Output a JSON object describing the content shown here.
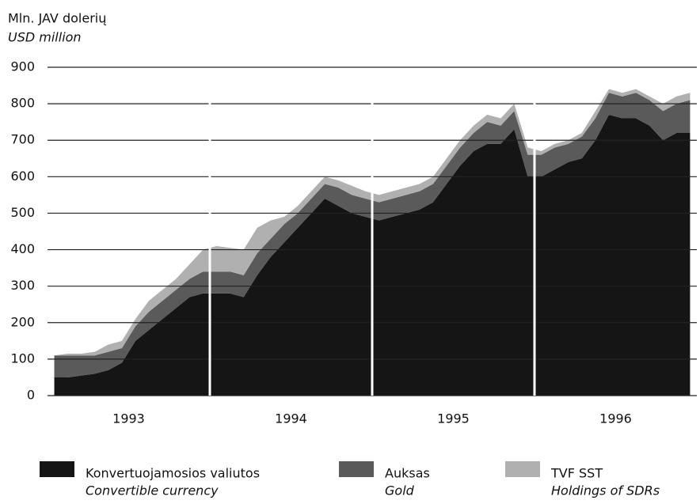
{
  "chart_data": {
    "type": "stacked_area",
    "y_label": "Mln. JAV dolerių",
    "y_label_en": "USD million",
    "categories": [
      null,
      null,
      null,
      null,
      null,
      "1993",
      null,
      null,
      null,
      null,
      null,
      null,
      null,
      null,
      null,
      null,
      null,
      "1994",
      null,
      null,
      null,
      null,
      null,
      null,
      null,
      null,
      null,
      null,
      null,
      "1995",
      null,
      null,
      null,
      null,
      null,
      null,
      null,
      null,
      null,
      null,
      null,
      "1996",
      null,
      null,
      null,
      null,
      null,
      null
    ],
    "series": [
      {
        "name": "Konvertuojamosios valiutos",
        "name_en": "Convertible currency",
        "color": "#151515",
        "values": [
          50,
          50,
          55,
          60,
          70,
          90,
          150,
          180,
          210,
          240,
          270,
          280,
          280,
          280,
          270,
          330,
          380,
          420,
          460,
          500,
          540,
          520,
          500,
          490,
          480,
          490,
          500,
          510,
          530,
          580,
          630,
          670,
          690,
          690,
          730,
          600,
          600,
          620,
          640,
          650,
          700,
          770,
          760,
          760,
          740,
          700,
          720,
          720
        ]
      },
      {
        "name": "Auksas",
        "name_en": "Gold",
        "color": "#5a5a5a",
        "values": [
          60,
          60,
          55,
          50,
          50,
          40,
          40,
          50,
          50,
          50,
          50,
          60,
          60,
          60,
          60,
          60,
          50,
          50,
          40,
          40,
          40,
          50,
          50,
          50,
          50,
          50,
          50,
          50,
          50,
          50,
          50,
          50,
          60,
          50,
          50,
          60,
          60,
          60,
          50,
          60,
          60,
          60,
          60,
          70,
          70,
          80,
          80,
          90
        ]
      },
      {
        "name": "TVF SST",
        "name_en": "Holdings of SDRs",
        "color": "#b0b0b0",
        "values": [
          0,
          5,
          5,
          10,
          20,
          20,
          20,
          30,
          30,
          30,
          40,
          60,
          70,
          65,
          70,
          70,
          50,
          20,
          20,
          20,
          20,
          20,
          25,
          20,
          20,
          20,
          20,
          20,
          20,
          20,
          20,
          20,
          20,
          20,
          20,
          20,
          10,
          10,
          10,
          10,
          20,
          10,
          10,
          10,
          10,
          20,
          20,
          20
        ]
      }
    ],
    "ylim": [
      0,
      900
    ],
    "yticks": [
      0,
      100,
      200,
      300,
      400,
      500,
      600,
      700,
      800,
      900
    ],
    "grid": true
  }
}
